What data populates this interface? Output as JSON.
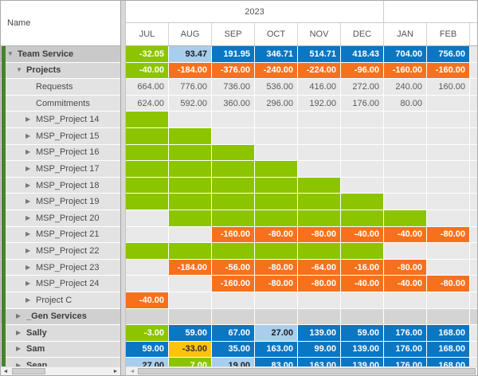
{
  "header": {
    "name_column_label": "Name",
    "year_label": "2023",
    "months": [
      "JUL",
      "AUG",
      "SEP",
      "OCT",
      "NOV",
      "DEC",
      "JAN",
      "FEB"
    ]
  },
  "icons": {
    "expanded": "▼",
    "collapsed": "▶"
  },
  "colors": {
    "positive_high_blue": "#0B76C2",
    "positive_low_lightblue": "#A9CEEC",
    "allocation_green": "#8CC400",
    "negative_orange": "#F7711C",
    "warning_yellow": "#FFC40A",
    "group_indicator_green": "#47822C"
  },
  "cell_styles": {
    "green": {
      "bg": "#8CC400",
      "fg": "#FFFFFF",
      "bold": true
    },
    "blue": {
      "bg": "#0B76C2",
      "fg": "#FFFFFF",
      "bold": true
    },
    "lightblue": {
      "bg": "#A9CEEC",
      "fg": "#1E1E1E",
      "bold": true
    },
    "orange": {
      "bg": "#F7711C",
      "fg": "#FFFFFF",
      "bold": true
    },
    "yellow": {
      "bg": "#FFC40A",
      "fg": "#2B2B2B",
      "bold": true
    },
    "plain": {
      "bg": "#E9E9E9",
      "fg": "#5A5A5A",
      "bold": false
    },
    "empty": {
      "bg": "#E9E9E9",
      "fg": "#5A5A5A",
      "bold": false
    },
    "gray": {
      "bg": "#D4D4D4",
      "fg": "#5A5A5A",
      "bold": false
    }
  },
  "rows": [
    {
      "name": "Team Service",
      "level": 0,
      "arrow": "expanded",
      "bold": true,
      "bg": "#C9C9C9",
      "cells": [
        {
          "v": "-32.05",
          "t": "green"
        },
        {
          "v": "93.47",
          "t": "lightblue"
        },
        {
          "v": "191.95",
          "t": "blue"
        },
        {
          "v": "346.71",
          "t": "blue"
        },
        {
          "v": "514.71",
          "t": "blue"
        },
        {
          "v": "418.43",
          "t": "blue"
        },
        {
          "v": "704.00",
          "t": "blue"
        },
        {
          "v": "756.00",
          "t": "blue"
        }
      ]
    },
    {
      "name": "Projects",
      "level": 1,
      "arrow": "expanded",
      "bold": true,
      "bg": "#D7D7D7",
      "cells": [
        {
          "v": "-40.00",
          "t": "green"
        },
        {
          "v": "-184.00",
          "t": "orange"
        },
        {
          "v": "-376.00",
          "t": "orange"
        },
        {
          "v": "-240.00",
          "t": "orange"
        },
        {
          "v": "-224.00",
          "t": "orange"
        },
        {
          "v": "-96.00",
          "t": "orange"
        },
        {
          "v": "-160.00",
          "t": "orange"
        },
        {
          "v": "-160.00",
          "t": "orange"
        }
      ]
    },
    {
      "name": "Requests",
      "level": 2,
      "arrow": "none",
      "bold": false,
      "bg": "#E3E3E3",
      "cells": [
        {
          "v": "664.00",
          "t": "plain"
        },
        {
          "v": "776.00",
          "t": "plain"
        },
        {
          "v": "736.00",
          "t": "plain"
        },
        {
          "v": "536.00",
          "t": "plain"
        },
        {
          "v": "416.00",
          "t": "plain"
        },
        {
          "v": "272.00",
          "t": "plain"
        },
        {
          "v": "240.00",
          "t": "plain"
        },
        {
          "v": "160.00",
          "t": "plain"
        }
      ]
    },
    {
      "name": "Commitments",
      "level": 2,
      "arrow": "none",
      "bold": false,
      "bg": "#E3E3E3",
      "cells": [
        {
          "v": "624.00",
          "t": "plain"
        },
        {
          "v": "592.00",
          "t": "plain"
        },
        {
          "v": "360.00",
          "t": "plain"
        },
        {
          "v": "296.00",
          "t": "plain"
        },
        {
          "v": "192.00",
          "t": "plain"
        },
        {
          "v": "176.00",
          "t": "plain"
        },
        {
          "v": "80.00",
          "t": "plain"
        },
        {
          "t": "empty"
        }
      ]
    },
    {
      "name": "MSP_Project 14",
      "level": 2,
      "arrow": "collapsed",
      "bold": false,
      "bg": "#E3E3E3",
      "cells": [
        {
          "t": "green"
        },
        {
          "t": "empty"
        },
        {
          "t": "empty"
        },
        {
          "t": "empty"
        },
        {
          "t": "empty"
        },
        {
          "t": "empty"
        },
        {
          "t": "empty"
        },
        {
          "t": "empty"
        }
      ]
    },
    {
      "name": "MSP_Project 15",
      "level": 2,
      "arrow": "collapsed",
      "bold": false,
      "bg": "#E3E3E3",
      "cells": [
        {
          "t": "green"
        },
        {
          "t": "green"
        },
        {
          "t": "empty"
        },
        {
          "t": "empty"
        },
        {
          "t": "empty"
        },
        {
          "t": "empty"
        },
        {
          "t": "empty"
        },
        {
          "t": "empty"
        }
      ]
    },
    {
      "name": "MSP_Project 16",
      "level": 2,
      "arrow": "collapsed",
      "bold": false,
      "bg": "#E3E3E3",
      "cells": [
        {
          "t": "green"
        },
        {
          "t": "green"
        },
        {
          "t": "green"
        },
        {
          "t": "empty"
        },
        {
          "t": "empty"
        },
        {
          "t": "empty"
        },
        {
          "t": "empty"
        },
        {
          "t": "empty"
        }
      ]
    },
    {
      "name": "MSP_Project 17",
      "level": 2,
      "arrow": "collapsed",
      "bold": false,
      "bg": "#E3E3E3",
      "cells": [
        {
          "t": "green"
        },
        {
          "t": "green"
        },
        {
          "t": "green"
        },
        {
          "t": "green"
        },
        {
          "t": "empty"
        },
        {
          "t": "empty"
        },
        {
          "t": "empty"
        },
        {
          "t": "empty"
        }
      ]
    },
    {
      "name": "MSP_Project 18",
      "level": 2,
      "arrow": "collapsed",
      "bold": false,
      "bg": "#E3E3E3",
      "cells": [
        {
          "t": "green"
        },
        {
          "t": "green"
        },
        {
          "t": "green"
        },
        {
          "t": "green"
        },
        {
          "t": "green"
        },
        {
          "t": "empty"
        },
        {
          "t": "empty"
        },
        {
          "t": "empty"
        }
      ]
    },
    {
      "name": "MSP_Project 19",
      "level": 2,
      "arrow": "collapsed",
      "bold": false,
      "bg": "#E3E3E3",
      "cells": [
        {
          "t": "green"
        },
        {
          "t": "green"
        },
        {
          "t": "green"
        },
        {
          "t": "green"
        },
        {
          "t": "green"
        },
        {
          "t": "green"
        },
        {
          "t": "empty"
        },
        {
          "t": "empty"
        }
      ]
    },
    {
      "name": "MSP_Project 20",
      "level": 2,
      "arrow": "collapsed",
      "bold": false,
      "bg": "#E3E3E3",
      "cells": [
        {
          "t": "empty"
        },
        {
          "t": "green"
        },
        {
          "t": "green"
        },
        {
          "t": "green"
        },
        {
          "t": "green"
        },
        {
          "t": "green"
        },
        {
          "t": "green"
        },
        {
          "t": "empty"
        }
      ]
    },
    {
      "name": "MSP_Project 21",
      "level": 2,
      "arrow": "collapsed",
      "bold": false,
      "bg": "#E3E3E3",
      "cells": [
        {
          "t": "empty"
        },
        {
          "t": "empty"
        },
        {
          "v": "-160.00",
          "t": "orange"
        },
        {
          "v": "-80.00",
          "t": "orange"
        },
        {
          "v": "-80.00",
          "t": "orange"
        },
        {
          "v": "-40.00",
          "t": "orange"
        },
        {
          "v": "-40.00",
          "t": "orange"
        },
        {
          "v": "-80.00",
          "t": "orange"
        }
      ]
    },
    {
      "name": "MSP_Project 22",
      "level": 2,
      "arrow": "collapsed",
      "bold": false,
      "bg": "#E3E3E3",
      "cells": [
        {
          "t": "green"
        },
        {
          "t": "green"
        },
        {
          "t": "green"
        },
        {
          "t": "green"
        },
        {
          "t": "green"
        },
        {
          "t": "green"
        },
        {
          "t": "empty"
        },
        {
          "t": "empty"
        }
      ]
    },
    {
      "name": "MSP_Project 23",
      "level": 2,
      "arrow": "collapsed",
      "bold": false,
      "bg": "#E3E3E3",
      "cells": [
        {
          "t": "empty"
        },
        {
          "v": "-184.00",
          "t": "orange"
        },
        {
          "v": "-56.00",
          "t": "orange"
        },
        {
          "v": "-80.00",
          "t": "orange"
        },
        {
          "v": "-64.00",
          "t": "orange"
        },
        {
          "v": "-16.00",
          "t": "orange"
        },
        {
          "v": "-80.00",
          "t": "orange"
        },
        {
          "t": "empty"
        }
      ]
    },
    {
      "name": "MSP_Project 24",
      "level": 2,
      "arrow": "collapsed",
      "bold": false,
      "bg": "#E3E3E3",
      "cells": [
        {
          "t": "empty"
        },
        {
          "t": "empty"
        },
        {
          "v": "-160.00",
          "t": "orange"
        },
        {
          "v": "-80.00",
          "t": "orange"
        },
        {
          "v": "-80.00",
          "t": "orange"
        },
        {
          "v": "-40.00",
          "t": "orange"
        },
        {
          "v": "-40.00",
          "t": "orange"
        },
        {
          "v": "-80.00",
          "t": "orange"
        }
      ]
    },
    {
      "name": "Project C",
      "level": 2,
      "arrow": "collapsed",
      "bold": false,
      "bg": "#E3E3E3",
      "cells": [
        {
          "v": "-40.00",
          "t": "orange"
        },
        {
          "t": "empty"
        },
        {
          "t": "empty"
        },
        {
          "t": "empty"
        },
        {
          "t": "empty"
        },
        {
          "t": "empty"
        },
        {
          "t": "empty"
        },
        {
          "t": "empty"
        }
      ]
    },
    {
      "name": "_Gen Services",
      "level": 1,
      "arrow": "collapsed",
      "bold": true,
      "bg": "#D0D0D0",
      "cells": [
        {
          "t": "gray"
        },
        {
          "t": "gray"
        },
        {
          "t": "gray"
        },
        {
          "t": "gray"
        },
        {
          "t": "gray"
        },
        {
          "t": "gray"
        },
        {
          "t": "gray"
        },
        {
          "t": "gray"
        }
      ]
    },
    {
      "name": "Sally",
      "level": 1,
      "arrow": "collapsed",
      "bold": true,
      "bg": "#DCDCDC",
      "cells": [
        {
          "v": "-3.00",
          "t": "green"
        },
        {
          "v": "59.00",
          "t": "blue"
        },
        {
          "v": "67.00",
          "t": "blue"
        },
        {
          "v": "27.00",
          "t": "lightblue"
        },
        {
          "v": "139.00",
          "t": "blue"
        },
        {
          "v": "59.00",
          "t": "blue"
        },
        {
          "v": "176.00",
          "t": "blue"
        },
        {
          "v": "168.00",
          "t": "blue"
        }
      ]
    },
    {
      "name": "Sam",
      "level": 1,
      "arrow": "collapsed",
      "bold": true,
      "bg": "#DCDCDC",
      "cells": [
        {
          "v": "59.00",
          "t": "blue"
        },
        {
          "v": "-33.00",
          "t": "yellow"
        },
        {
          "v": "35.00",
          "t": "blue"
        },
        {
          "v": "163.00",
          "t": "blue"
        },
        {
          "v": "99.00",
          "t": "blue"
        },
        {
          "v": "139.00",
          "t": "blue"
        },
        {
          "v": "176.00",
          "t": "blue"
        },
        {
          "v": "168.00",
          "t": "blue"
        }
      ]
    },
    {
      "name": "Sean",
      "level": 1,
      "arrow": "collapsed",
      "bold": true,
      "bg": "#DCDCDC",
      "cells": [
        {
          "v": "27.00",
          "t": "lightblue"
        },
        {
          "v": "7.00",
          "t": "green"
        },
        {
          "v": "19.00",
          "t": "lightblue"
        },
        {
          "v": "83.00",
          "t": "blue"
        },
        {
          "v": "163.00",
          "t": "blue"
        },
        {
          "v": "139.00",
          "t": "blue"
        },
        {
          "v": "176.00",
          "t": "blue"
        },
        {
          "v": "168.00",
          "t": "blue"
        }
      ]
    }
  ]
}
